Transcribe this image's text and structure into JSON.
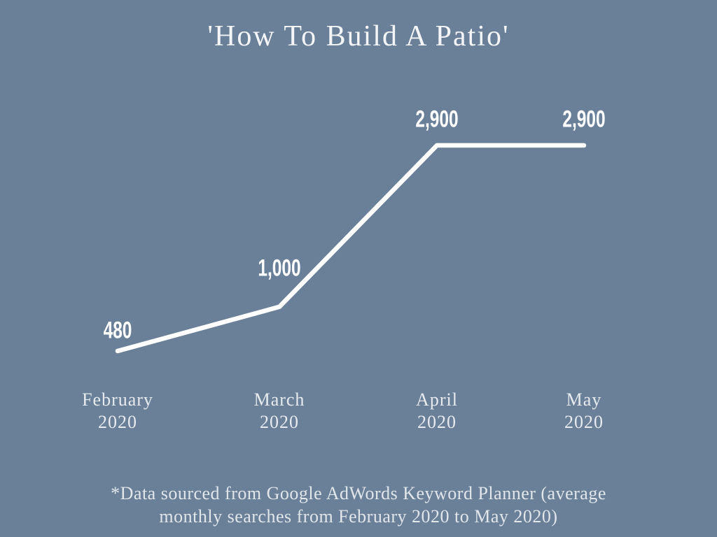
{
  "background_color": "#6A8099",
  "chart_data": {
    "type": "line",
    "title": "'How To Build A Patio'",
    "categories": [
      "February 2020",
      "March 2020",
      "April 2020",
      "May 2020"
    ],
    "category_lines": [
      [
        "February",
        "2020"
      ],
      [
        "March",
        "2020"
      ],
      [
        "April",
        "2020"
      ],
      [
        "May",
        "2020"
      ]
    ],
    "values": [
      480,
      1000,
      2900,
      2900
    ],
    "value_labels": [
      "480",
      "1,000",
      "2,900",
      "2,900"
    ],
    "xlabel": "",
    "ylabel": "",
    "ylim": [
      0,
      3000
    ],
    "grid": false,
    "legend": "none",
    "line_color": "#FFFFFF",
    "data_label_color": "#FFFFFF",
    "axis_text_color": "#DCE3EB",
    "footnote": "*Data sourced from Google AdWords Keyword Planner (average monthly searches from February 2020 to May 2020)",
    "footnote_lines": [
      "*Data sourced from Google AdWords Keyword Planner (average",
      "monthly searches from February 2020 to May 2020)"
    ]
  }
}
